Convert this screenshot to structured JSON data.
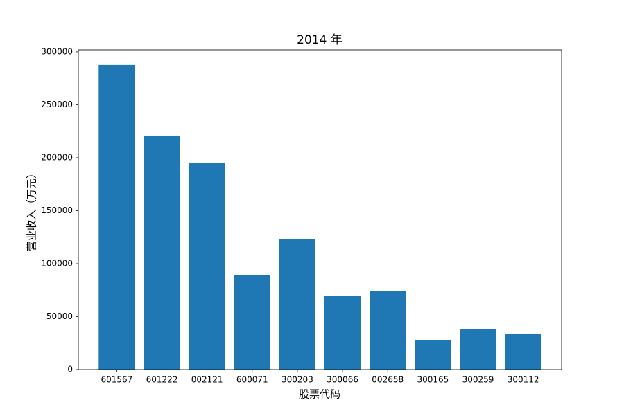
{
  "chart_data": {
    "type": "bar",
    "title": "2014 年",
    "x_label": "股票代码",
    "y_label": "营业收入（万元）",
    "categories": [
      "601567",
      "601222",
      "002121",
      "600071",
      "300203",
      "300066",
      "002658",
      "300165",
      "300259",
      "300112"
    ],
    "values": [
      287600,
      220900,
      195400,
      88900,
      122900,
      69900,
      74500,
      27500,
      37900,
      34000
    ],
    "color": "#1f77b4",
    "ylim": [
      0,
      301900
    ],
    "yticks": [
      0,
      50000,
      100000,
      150000,
      200000,
      250000,
      300000
    ],
    "grid": false
  }
}
